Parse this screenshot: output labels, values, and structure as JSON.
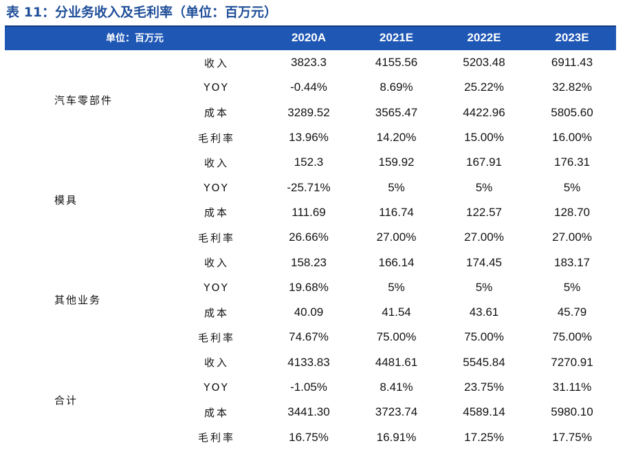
{
  "caption": "表 11：分业务收入及毛利率（单位：百万元）",
  "header": {
    "unit_label": "单位：百万元",
    "years": [
      "2020A",
      "2021E",
      "2022E",
      "2023E"
    ]
  },
  "segments": [
    {
      "name": "汽车零部件",
      "rows": [
        {
          "metric": "收入",
          "values": [
            "3823.3",
            "4155.56",
            "5203.48",
            "6911.43"
          ]
        },
        {
          "metric": "YOY",
          "values": [
            "-0.44%",
            "8.69%",
            "25.22%",
            "32.82%"
          ]
        },
        {
          "metric": "成本",
          "values": [
            "3289.52",
            "3565.47",
            "4422.96",
            "5805.60"
          ]
        },
        {
          "metric": "毛利率",
          "values": [
            "13.96%",
            "14.20%",
            "15.00%",
            "16.00%"
          ]
        }
      ]
    },
    {
      "name": "模具",
      "rows": [
        {
          "metric": "收入",
          "values": [
            "152.3",
            "159.92",
            "167.91",
            "176.31"
          ]
        },
        {
          "metric": "YOY",
          "values": [
            "-25.71%",
            "5%",
            "5%",
            "5%"
          ]
        },
        {
          "metric": "成本",
          "values": [
            "111.69",
            "116.74",
            "122.57",
            "128.70"
          ]
        },
        {
          "metric": "毛利率",
          "values": [
            "26.66%",
            "27.00%",
            "27.00%",
            "27.00%"
          ]
        }
      ]
    },
    {
      "name": "其他业务",
      "rows": [
        {
          "metric": "收入",
          "values": [
            "158.23",
            "166.14",
            "174.45",
            "183.17"
          ]
        },
        {
          "metric": "YOY",
          "values": [
            "19.68%",
            "5%",
            "5%",
            "5%"
          ]
        },
        {
          "metric": "成本",
          "values": [
            "40.09",
            "41.54",
            "43.61",
            "45.79"
          ]
        },
        {
          "metric": "毛利率",
          "values": [
            "74.67%",
            "75.00%",
            "75.00%",
            "75.00%"
          ]
        }
      ]
    },
    {
      "name": "合计",
      "rows": [
        {
          "metric": "收入",
          "values": [
            "4133.83",
            "4481.61",
            "5545.84",
            "7270.91"
          ]
        },
        {
          "metric": "YOY",
          "values": [
            "-1.05%",
            "8.41%",
            "23.75%",
            "31.11%"
          ]
        },
        {
          "metric": "成本",
          "values": [
            "3441.30",
            "3723.74",
            "4589.14",
            "5980.10"
          ]
        },
        {
          "metric": "毛利率",
          "values": [
            "16.75%",
            "16.91%",
            "17.25%",
            "17.75%"
          ]
        }
      ]
    }
  ],
  "colors": {
    "caption": "#1f4e99",
    "header_background": "#1f57b5",
    "header_text": "#ffffff"
  }
}
